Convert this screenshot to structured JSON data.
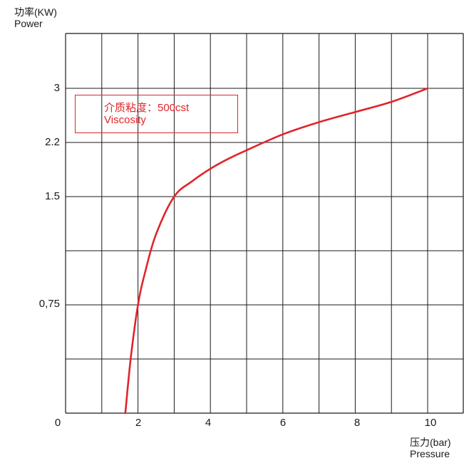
{
  "chart_data": {
    "type": "line",
    "ylabel_cn": "功率(KW)",
    "ylabel_en": "Power",
    "xlabel_cn": "压力(bar)",
    "xlabel_en": "Pressure",
    "x_ticks": [
      "0",
      "2",
      "4",
      "6",
      "8",
      "10"
    ],
    "y_ticks": [
      "0,75",
      "1.5",
      "2.2",
      "3"
    ],
    "xlim": [
      0,
      10
    ],
    "grid": true,
    "annotation": {
      "line1": "介质粘度：500cst",
      "line2": "Viscosity"
    },
    "series": [
      {
        "color": "#e0252b",
        "x": [
          1.65,
          1.8,
          2.0,
          2.2,
          2.5,
          3.0,
          3.5,
          4.0,
          4.5,
          5.0,
          6.0,
          7.0,
          8.0,
          9.0,
          10.0
        ],
        "y": [
          0.0,
          0.38,
          0.75,
          0.98,
          1.24,
          1.5,
          1.7,
          1.86,
          1.99,
          2.1,
          2.32,
          2.5,
          2.65,
          2.8,
          3.0
        ]
      }
    ],
    "colors": {
      "curve": "#e0252b",
      "grid": "#1a1a1a",
      "annotation": "#e0252b"
    }
  }
}
